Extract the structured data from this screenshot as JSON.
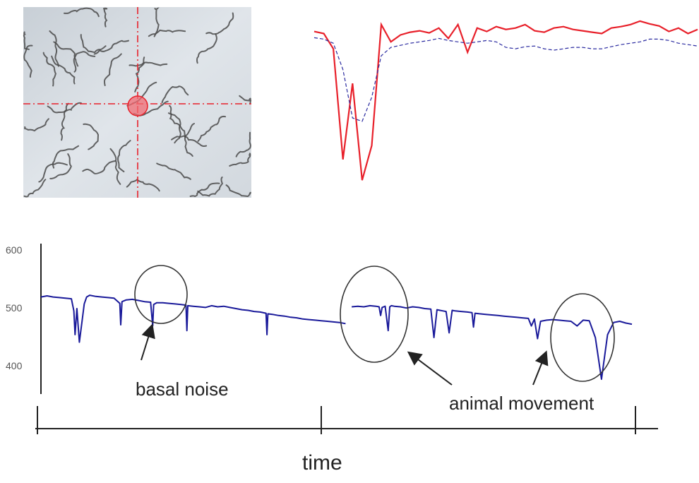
{
  "photo": {
    "label": "worm-culture-photo",
    "background_color": "#d9dee4",
    "crosshair_color": "#e8202a",
    "worm_color": "#4a4a4a"
  },
  "chart_data": [
    {
      "type": "line",
      "title": "",
      "xlabel": "",
      "ylabel": "",
      "x": [
        0,
        1,
        2,
        3,
        4,
        5,
        6,
        7,
        8,
        9,
        10,
        11,
        12,
        13,
        14,
        15,
        16,
        17,
        18,
        19,
        20,
        21,
        22,
        23,
        24,
        25,
        26,
        27,
        28,
        29,
        30,
        31,
        32,
        33,
        34,
        35,
        36,
        37,
        38,
        39,
        40
      ],
      "series": [
        {
          "color": "#e8202a",
          "style": "solid",
          "values": [
            0.85,
            0.82,
            0.6,
            -1.0,
            0.1,
            -1.3,
            -0.8,
            0.95,
            0.7,
            0.8,
            0.84,
            0.86,
            0.83,
            0.9,
            0.75,
            0.95,
            0.55,
            0.9,
            0.85,
            0.92,
            0.88,
            0.9,
            0.95,
            0.86,
            0.84,
            0.9,
            0.92,
            0.88,
            0.86,
            0.84,
            0.82,
            0.9,
            0.92,
            0.95,
            1.0,
            0.96,
            0.93,
            0.85,
            0.9,
            0.82,
            0.88
          ]
        },
        {
          "color": "#2a2aa0",
          "style": "dashed",
          "values": [
            0.76,
            0.74,
            0.68,
            0.3,
            -0.4,
            -0.45,
            -0.1,
            0.5,
            0.62,
            0.65,
            0.68,
            0.7,
            0.72,
            0.75,
            0.72,
            0.7,
            0.68,
            0.7,
            0.72,
            0.7,
            0.62,
            0.6,
            0.63,
            0.64,
            0.6,
            0.58,
            0.6,
            0.62,
            0.62,
            0.6,
            0.6,
            0.63,
            0.66,
            0.68,
            0.7,
            0.74,
            0.74,
            0.72,
            0.68,
            0.66,
            0.64
          ]
        }
      ]
    },
    {
      "type": "line",
      "title": "",
      "xlabel": "time",
      "ylabel": "",
      "y_ticks": [
        "600",
        "500",
        "400"
      ],
      "ylim": [
        350,
        600
      ],
      "series": [
        {
          "color": "#1a1a9a",
          "x": [
            0,
            2,
            4,
            6,
            8,
            10,
            10.8,
            11.2,
            11.8,
            12.6,
            13.5,
            14.2,
            15,
            16,
            18,
            20,
            22,
            24,
            25.9,
            26.2,
            26.6,
            28,
            30,
            32,
            34,
            36,
            36.7,
            37,
            38,
            40,
            42,
            44,
            46,
            47.6,
            47.9,
            48.2,
            50,
            52,
            54,
            56,
            58,
            60,
            62,
            64,
            66,
            68,
            70,
            72,
            73.9,
            74.2,
            74.5,
            76,
            78,
            80,
            82,
            84,
            86,
            88,
            90,
            92,
            94,
            96,
            98,
            100
          ],
          "values": [
            520,
            522,
            520,
            519,
            518,
            517,
            496,
            455,
            500,
            442,
            478,
            508,
            520,
            523,
            521,
            520,
            519,
            518,
            509,
            472,
            512,
            515,
            516,
            514,
            512,
            511,
            470,
            507,
            510,
            510,
            509,
            508,
            507,
            506,
            462,
            505,
            504,
            503,
            502,
            505,
            503,
            504,
            502,
            500,
            498,
            497,
            495,
            494,
            492,
            455,
            491,
            490,
            488,
            487,
            485,
            484,
            482,
            481,
            480,
            479,
            478,
            477,
            476,
            474
          ]
        },
        {
          "color": "#1a1a9a",
          "x": [
            102,
            104,
            106,
            108,
            110,
            111,
            111.5,
            112,
            113,
            114,
            114.5,
            115,
            116,
            118,
            120,
            122,
            124,
            126,
            128,
            129,
            130,
            131,
            132,
            133,
            134,
            135,
            136,
            138,
            140,
            141.5,
            142,
            142.5,
            144,
            146,
            148,
            150,
            152,
            154,
            156,
            158,
            160,
            161,
            162,
            163,
            164,
            166,
            168,
            170,
            172,
            174,
            176,
            178,
            180,
            182,
            184,
            186,
            188,
            190,
            192,
            194
          ],
          "values": [
            503,
            504,
            503,
            505,
            504,
            503,
            488,
            502,
            504,
            462,
            503,
            505,
            504,
            503,
            501,
            503,
            502,
            500,
            499,
            450,
            498,
            497,
            496,
            495,
            458,
            497,
            496,
            495,
            494,
            493,
            468,
            492,
            491,
            490,
            489,
            488,
            487,
            486,
            485,
            484,
            483,
            470,
            482,
            448,
            478,
            480,
            481,
            480,
            479,
            478,
            470,
            480,
            479,
            450,
            378,
            455,
            476,
            478,
            475,
            473
          ]
        }
      ],
      "annotations": [
        {
          "text": "basal noise"
        },
        {
          "text": "animal movement"
        }
      ]
    }
  ]
}
